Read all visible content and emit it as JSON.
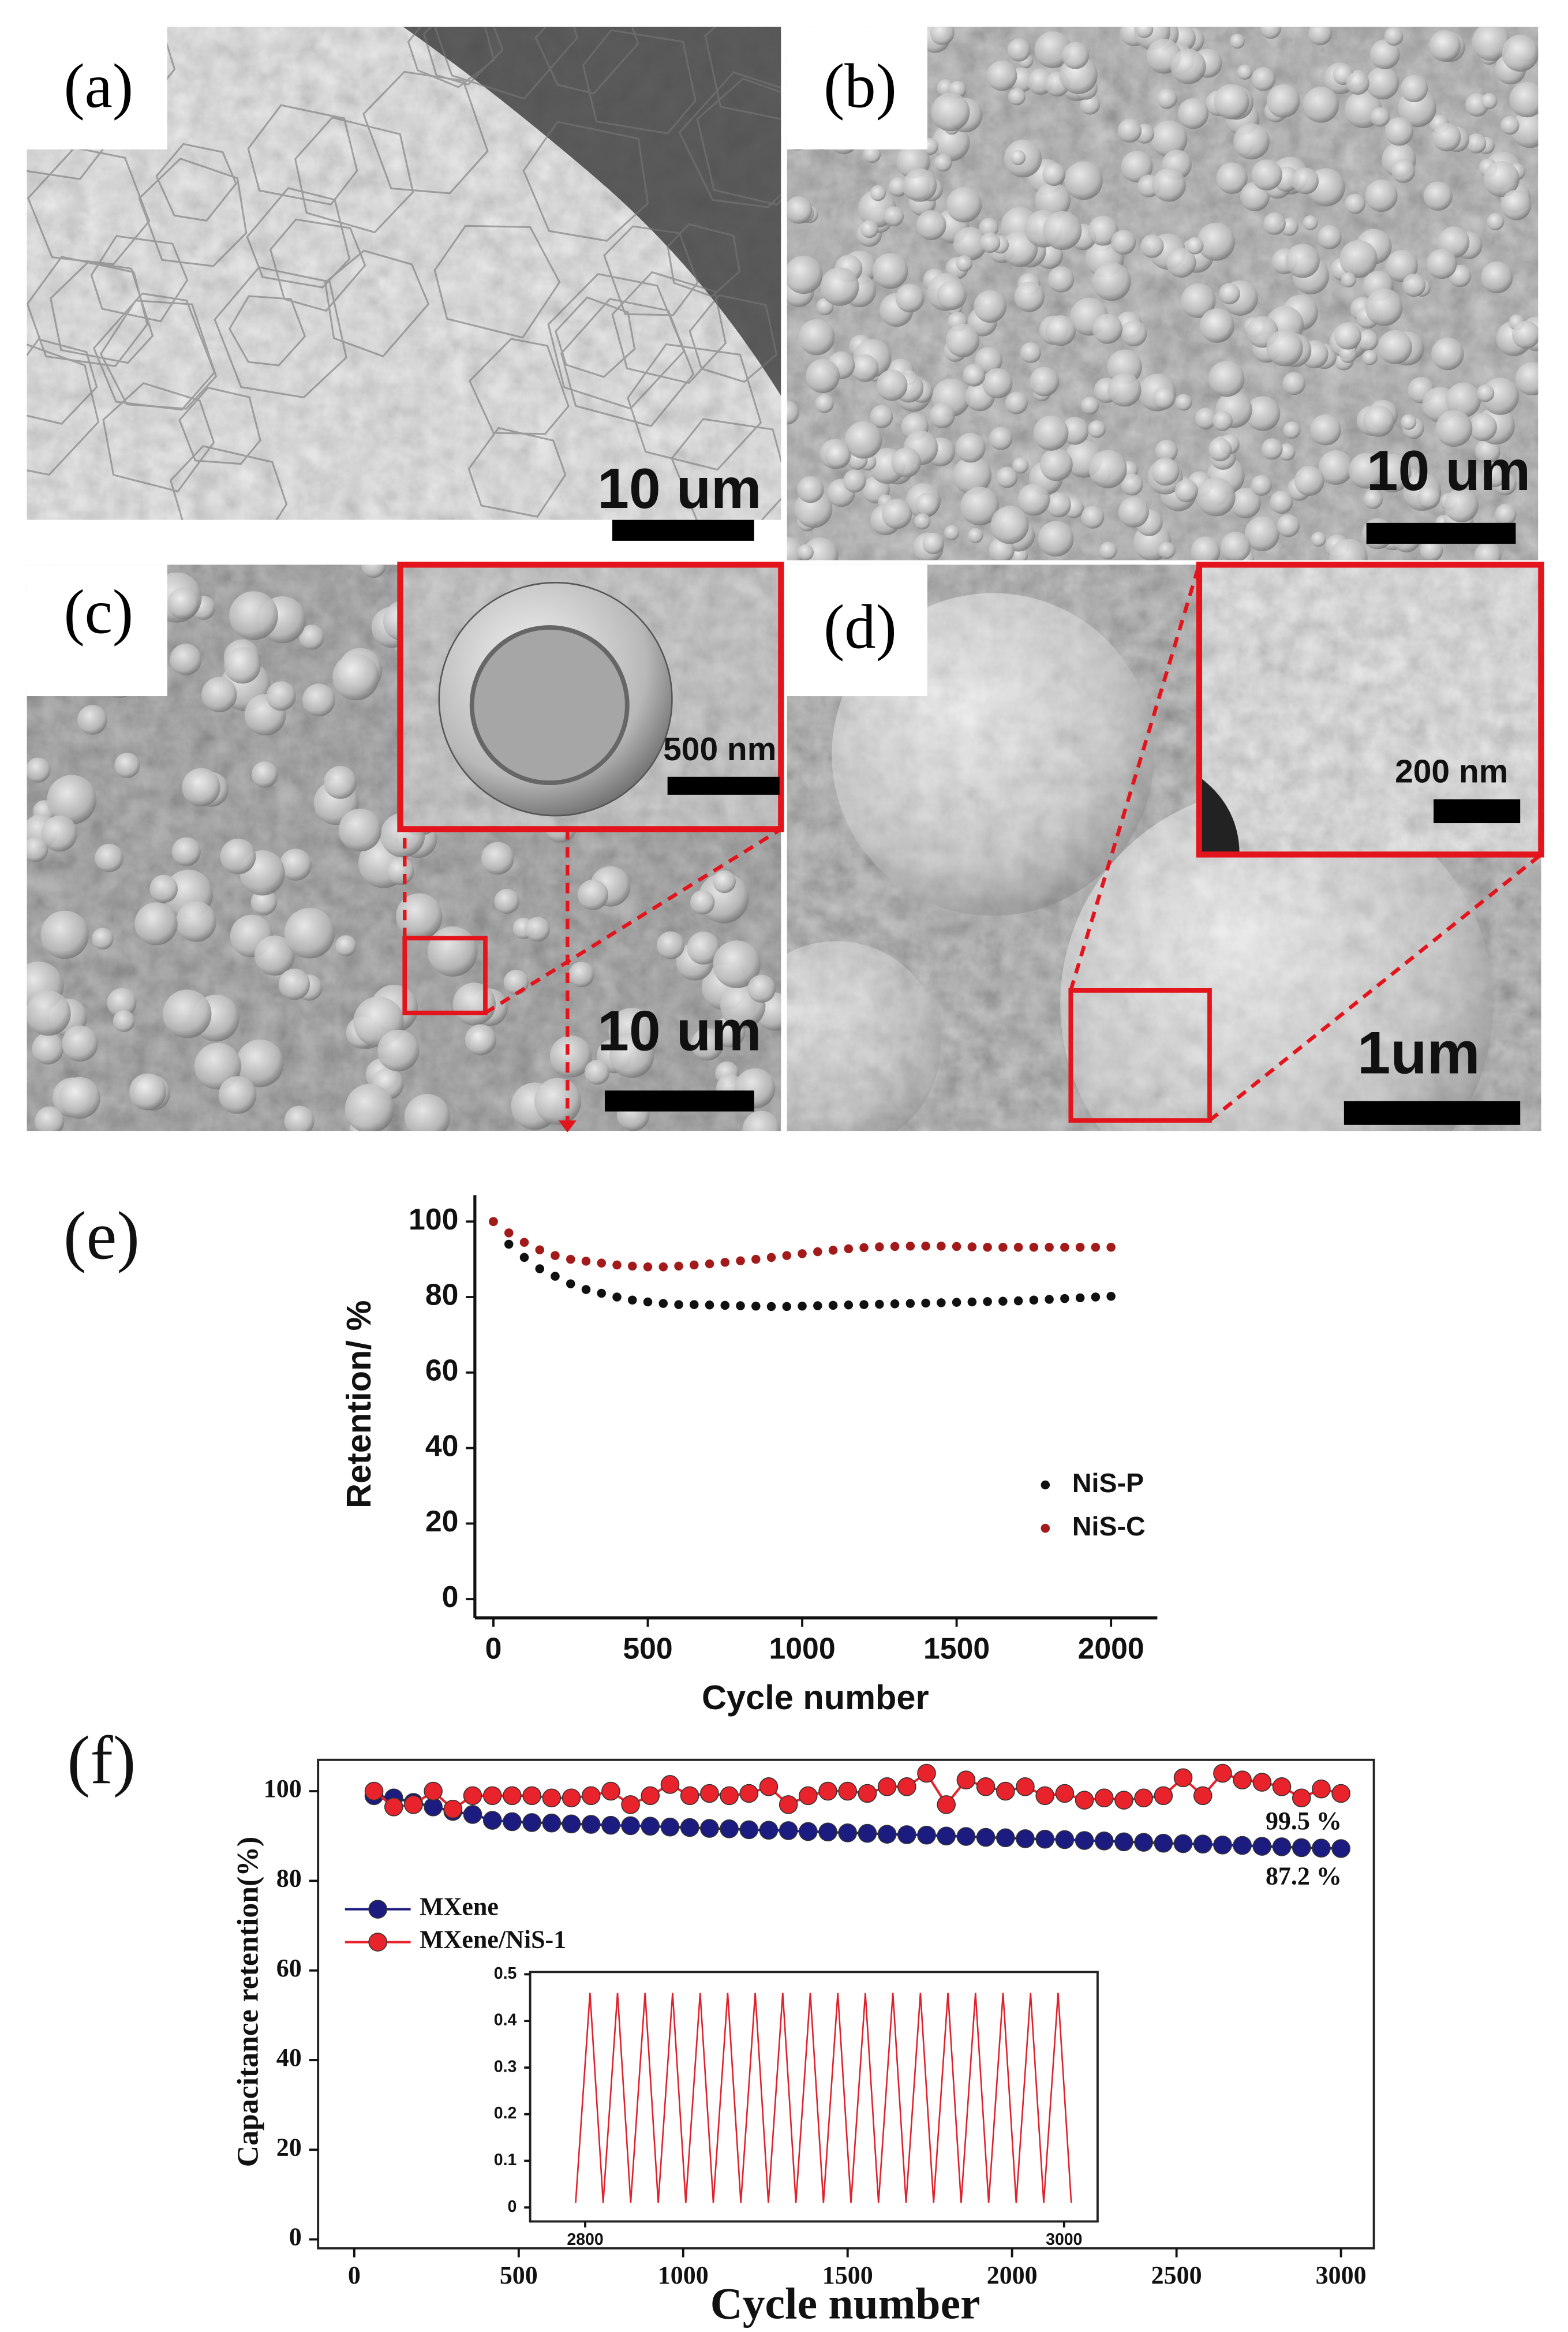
{
  "panels": [
    {
      "label": "(a)",
      "scale_bar": "10 um"
    },
    {
      "label": "(b)",
      "scale_bar": "10 um"
    },
    {
      "label": "(c)",
      "scale_bar": "10 um",
      "inset_scale_bar": "500 nm"
    },
    {
      "label": "(d)",
      "scale_bar": "1um",
      "inset_scale_bar": "200 nm"
    }
  ],
  "chart_data": [
    {
      "type": "scatter",
      "label": "(e)",
      "x_label": "Cycle number",
      "y_label": "Retention/ %",
      "x": [
        0,
        50,
        100,
        150,
        200,
        250,
        300,
        350,
        400,
        450,
        500,
        550,
        600,
        650,
        700,
        750,
        800,
        850,
        900,
        950,
        1000,
        1050,
        1100,
        1150,
        1200,
        1250,
        1300,
        1350,
        1400,
        1450,
        1500,
        1550,
        1600,
        1650,
        1700,
        1750,
        1800,
        1850,
        1900,
        1950,
        2000
      ],
      "series": [
        {
          "name": "NiS-P",
          "color": "#111111",
          "values": [
            100,
            94,
            90.5,
            87.5,
            85.5,
            83.5,
            82,
            81,
            80,
            79.2,
            78.7,
            78.3,
            78,
            78,
            77.9,
            77.8,
            77.7,
            77.6,
            77.5,
            77.5,
            77.6,
            77.7,
            77.8,
            77.9,
            78,
            78.1,
            78.2,
            78.3,
            78.4,
            78.5,
            78.6,
            78.7,
            78.8,
            78.9,
            79,
            79.2,
            79.4,
            79.6,
            79.8,
            80,
            80.2
          ]
        },
        {
          "name": "NiS-C",
          "color": "#a31a1a",
          "values": [
            100,
            97,
            94.5,
            92.5,
            91,
            90,
            89.5,
            89,
            88.5,
            88.2,
            88,
            88,
            88.2,
            88.5,
            88.8,
            89.2,
            89.6,
            90,
            90.5,
            91,
            91.5,
            92,
            92.4,
            92.8,
            93.1,
            93.3,
            93.4,
            93.5,
            93.5,
            93.5,
            93.4,
            93.3,
            93.2,
            93.2,
            93.2,
            93.2,
            93.2,
            93.2,
            93.2,
            93.2,
            93.2
          ]
        }
      ],
      "xlim": [
        -60,
        2150
      ],
      "ylim": [
        -5,
        107
      ],
      "xticks": [
        0,
        500,
        1000,
        1500,
        2000
      ],
      "yticks": [
        0,
        20,
        40,
        60,
        80,
        100
      ],
      "legend": "lower right"
    },
    {
      "type": "line",
      "markers": true,
      "label": "(f)",
      "x_label": "Cycle number",
      "y_label": "Capacitance retention(%)",
      "x": [
        60,
        120,
        180,
        240,
        300,
        360,
        420,
        480,
        540,
        600,
        660,
        720,
        780,
        840,
        900,
        960,
        1020,
        1080,
        1140,
        1200,
        1260,
        1320,
        1380,
        1440,
        1500,
        1560,
        1620,
        1680,
        1740,
        1800,
        1860,
        1920,
        1980,
        2040,
        2100,
        2160,
        2220,
        2280,
        2340,
        2400,
        2460,
        2520,
        2580,
        2640,
        2700,
        2760,
        2820,
        2880,
        2940,
        3000
      ],
      "series": [
        {
          "name": "MXene",
          "color": "#1c1c80",
          "values": [
            99,
            98.5,
            97.5,
            96.5,
            95.5,
            94.8,
            93.5,
            93.2,
            93.0,
            92.9,
            92.7,
            92.6,
            92.4,
            92.3,
            92.2,
            92.0,
            91.9,
            91.7,
            91.6,
            91.4,
            91.3,
            91.2,
            91.0,
            90.9,
            90.7,
            90.6,
            90.4,
            90.3,
            90.2,
            90.0,
            89.9,
            89.7,
            89.6,
            89.4,
            89.3,
            89.2,
            89.0,
            88.9,
            88.7,
            88.6,
            88.4,
            88.3,
            88.2,
            88.0,
            87.9,
            87.7,
            87.6,
            87.4,
            87.3,
            87.2
          ]
        },
        {
          "name": "MXene/NiS-1",
          "color": "#e8232b",
          "values": [
            100,
            96.5,
            97,
            100,
            96,
            99,
            99,
            99,
            99,
            98.5,
            98.5,
            99,
            100,
            97,
            99,
            101.5,
            99,
            99.5,
            99,
            99.5,
            101,
            97,
            99,
            100,
            100,
            99.5,
            101,
            101,
            104,
            97,
            102.5,
            101,
            100,
            101,
            99,
            99.5,
            98,
            98.5,
            98,
            98.5,
            99,
            103,
            99,
            104,
            102.5,
            102,
            101,
            98.5,
            100.5,
            99.5
          ]
        }
      ],
      "annotations": [
        "87.2 %",
        "99.5 %"
      ],
      "xlim": [
        -110,
        3100
      ],
      "ylim": [
        -2,
        107
      ],
      "xticks": [
        0,
        500,
        1000,
        1500,
        2000,
        2500,
        3000
      ],
      "yticks": [
        0,
        20,
        40,
        60,
        80,
        100
      ],
      "legend": "upper left"
    },
    {
      "type": "line",
      "x": [
        2796,
        2802,
        2807.5,
        2813.5,
        2819,
        2825,
        2830.5,
        2836.5,
        2842,
        2848,
        2853.5,
        2859.5,
        2865,
        2871,
        2876.5,
        2882.5,
        2888,
        2894,
        2899.5,
        2905.5,
        2911,
        2917,
        2922.5,
        2928.5,
        2934,
        2940,
        2945.5,
        2951.5,
        2957,
        2963,
        2968.5,
        2974.5,
        2980,
        2986,
        2991.5,
        2997.5,
        3003
      ],
      "values": [
        0.01,
        0.46,
        0.01,
        0.46,
        0.01,
        0.46,
        0.01,
        0.46,
        0.01,
        0.46,
        0.01,
        0.46,
        0.01,
        0.46,
        0.01,
        0.46,
        0.01,
        0.46,
        0.01,
        0.46,
        0.01,
        0.46,
        0.01,
        0.46,
        0.01,
        0.46,
        0.01,
        0.46,
        0.01,
        0.46,
        0.01,
        0.46,
        0.01,
        0.46,
        0.01,
        0.46,
        0.01
      ],
      "color": "#e0202a",
      "xlim": [
        2777,
        3014
      ],
      "ylim": [
        -0.03,
        0.505
      ],
      "xticks": [
        2800,
        3000
      ],
      "yticks": [
        0,
        0.1,
        0.2,
        0.3,
        0.4,
        0.5
      ]
    }
  ]
}
